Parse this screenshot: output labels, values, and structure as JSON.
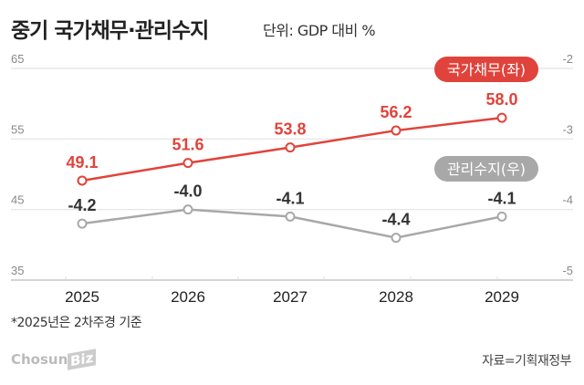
{
  "title": "중기 국가채무·관리수지",
  "unit": "단위: GDP 대비 %",
  "note": "*2025년은 2차주경 기준",
  "source": "자료=기획재정부",
  "logo": "ChosunBiz",
  "chart_data": {
    "type": "line",
    "categories": [
      "2025",
      "2026",
      "2027",
      "2028",
      "2029"
    ],
    "y_left": {
      "range": [
        35,
        65
      ],
      "ticks": [
        "65",
        "55",
        "45",
        "35"
      ]
    },
    "y_right": {
      "range": [
        -5,
        -2
      ],
      "ticks": [
        "-2",
        "-3",
        "-4",
        "-5"
      ]
    },
    "grid": true,
    "series": [
      {
        "name": "국가채무(좌)",
        "axis": "left",
        "color": "#e0433b",
        "values": [
          49.1,
          51.6,
          53.8,
          56.2,
          58.0
        ],
        "labels": [
          "49.1",
          "51.6",
          "53.8",
          "56.2",
          "58.0"
        ]
      },
      {
        "name": "관리수지(우)",
        "axis": "right",
        "color": "#a8a8a8",
        "values": [
          -4.2,
          -4.0,
          -4.1,
          -4.4,
          -4.1
        ],
        "labels": [
          "-4.2",
          "-4.0",
          "-4.1",
          "-4.4",
          "-4.1"
        ]
      }
    ]
  }
}
